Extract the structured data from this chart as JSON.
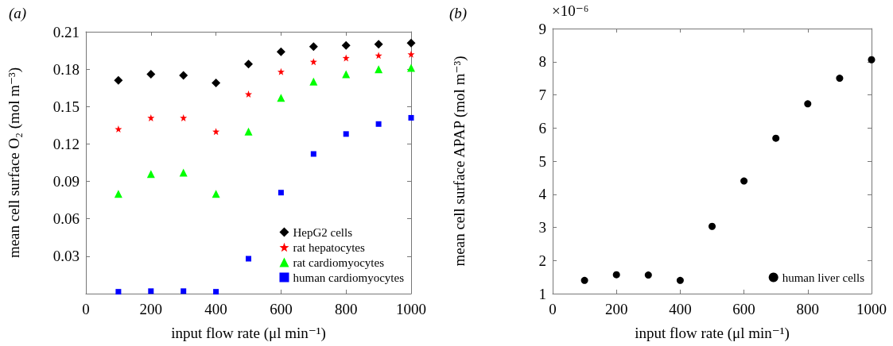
{
  "chart_data": [
    {
      "type": "scatter",
      "title": "(a)",
      "xlabel": "input flow rate (μl min⁻¹)",
      "ylabel": "mean cell surface O₂ (mol m⁻³)",
      "x": [
        100,
        200,
        300,
        400,
        500,
        600,
        700,
        800,
        900,
        1000
      ],
      "series": [
        {
          "name": "HepG2 cells",
          "color": "#000000",
          "marker": "diamond",
          "values": [
            0.171,
            0.176,
            0.175,
            0.169,
            0.184,
            0.194,
            0.198,
            0.199,
            0.2,
            0.201
          ]
        },
        {
          "name": "rat hepatocytes",
          "color": "#ff0000",
          "marker": "star",
          "values": [
            0.132,
            0.141,
            0.141,
            0.13,
            0.16,
            0.178,
            0.186,
            0.189,
            0.191,
            0.192
          ]
        },
        {
          "name": "rat cardiomyocytes",
          "color": "#00ff00",
          "marker": "triangle",
          "values": [
            0.08,
            0.096,
            0.097,
            0.08,
            0.13,
            0.157,
            0.17,
            0.176,
            0.18,
            0.181
          ]
        },
        {
          "name": "human cardiomyocytes",
          "color": "#0000ff",
          "marker": "square",
          "values": [
            0.0015,
            0.002,
            0.002,
            0.0015,
            0.028,
            0.081,
            0.112,
            0.128,
            0.136,
            0.141
          ]
        }
      ],
      "xlim": [
        0,
        1000
      ],
      "xticks": [
        0,
        200,
        400,
        600,
        800,
        1000
      ],
      "ylim": [
        0,
        0.21
      ],
      "yticks": [
        0.03,
        0.06,
        0.09,
        0.12,
        0.15,
        0.18,
        0.21
      ],
      "grid": false,
      "legend": "bottom right"
    },
    {
      "type": "scatter",
      "title": "(b)",
      "xlabel": "input flow rate (μl min⁻¹)",
      "ylabel": "mean cell surface APAP (mol m⁻³)",
      "annotations": [
        "×10⁻⁶"
      ],
      "x": [
        100,
        200,
        300,
        400,
        500,
        600,
        700,
        800,
        900,
        1000
      ],
      "series": [
        {
          "name": "human liver cells",
          "color": "#000000",
          "marker": "circle",
          "values": [
            1.4,
            1.57,
            1.56,
            1.4,
            3.03,
            4.4,
            5.69,
            6.73,
            7.5,
            8.06
          ]
        }
      ],
      "xlim": [
        0,
        1000
      ],
      "xticks": [
        0,
        200,
        400,
        600,
        800,
        1000
      ],
      "ylim": [
        1,
        9
      ],
      "yticks": [
        1,
        2,
        3,
        4,
        5,
        6,
        7,
        8,
        9
      ],
      "grid": false,
      "legend": "bottom right"
    }
  ]
}
